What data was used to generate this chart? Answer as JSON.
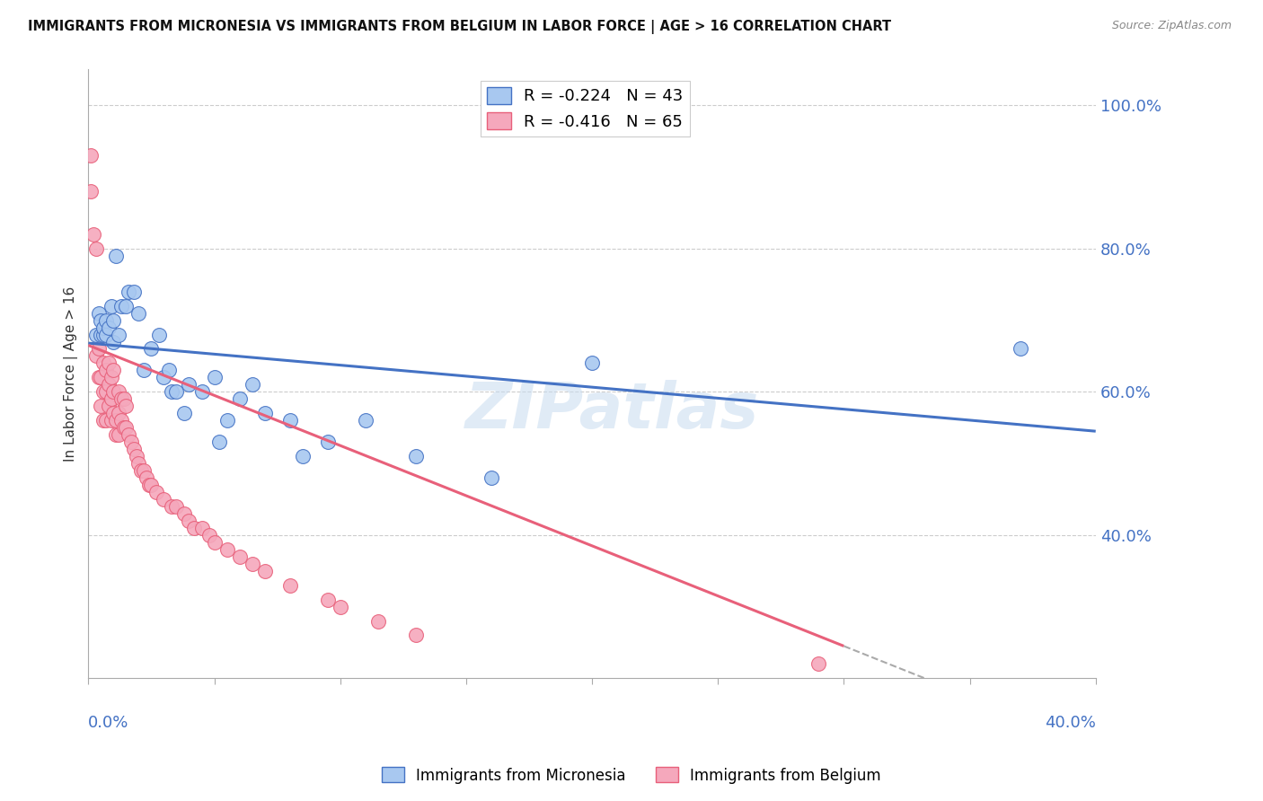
{
  "title": "IMMIGRANTS FROM MICRONESIA VS IMMIGRANTS FROM BELGIUM IN LABOR FORCE | AGE > 16 CORRELATION CHART",
  "source": "Source: ZipAtlas.com",
  "ylabel": "In Labor Force | Age > 16",
  "x_label_bottom_left": "0.0%",
  "x_label_bottom_right": "40.0%",
  "right_ytick_labels": [
    "40.0%",
    "60.0%",
    "80.0%",
    "100.0%"
  ],
  "right_ytick_vals": [
    0.4,
    0.6,
    0.8,
    1.0
  ],
  "xlim": [
    0.0,
    0.4
  ],
  "ylim": [
    0.2,
    1.05
  ],
  "legend_micronesia": "Immigrants from Micronesia",
  "legend_belgium": "Immigrants from Belgium",
  "R_micronesia": -0.224,
  "N_micronesia": 43,
  "R_belgium": -0.416,
  "N_belgium": 65,
  "color_micronesia": "#A8C8F0",
  "color_belgium": "#F5A8BC",
  "color_line_micronesia": "#4472C4",
  "color_line_belgium": "#E8607A",
  "color_axis_labels": "#4472C4",
  "watermark": "ZIPatlas",
  "micronesia_x": [
    0.003,
    0.004,
    0.005,
    0.005,
    0.006,
    0.006,
    0.007,
    0.007,
    0.008,
    0.009,
    0.01,
    0.01,
    0.011,
    0.012,
    0.013,
    0.015,
    0.016,
    0.018,
    0.02,
    0.022,
    0.025,
    0.028,
    0.03,
    0.032,
    0.033,
    0.035,
    0.038,
    0.04,
    0.045,
    0.05,
    0.052,
    0.055,
    0.06,
    0.065,
    0.07,
    0.08,
    0.085,
    0.095,
    0.11,
    0.13,
    0.16,
    0.2,
    0.37
  ],
  "micronesia_y": [
    0.68,
    0.71,
    0.68,
    0.7,
    0.68,
    0.69,
    0.68,
    0.7,
    0.69,
    0.72,
    0.7,
    0.67,
    0.79,
    0.68,
    0.72,
    0.72,
    0.74,
    0.74,
    0.71,
    0.63,
    0.66,
    0.68,
    0.62,
    0.63,
    0.6,
    0.6,
    0.57,
    0.61,
    0.6,
    0.62,
    0.53,
    0.56,
    0.59,
    0.61,
    0.57,
    0.56,
    0.51,
    0.53,
    0.56,
    0.51,
    0.48,
    0.64,
    0.66
  ],
  "belgium_x": [
    0.001,
    0.001,
    0.002,
    0.003,
    0.003,
    0.004,
    0.004,
    0.005,
    0.005,
    0.006,
    0.006,
    0.006,
    0.007,
    0.007,
    0.007,
    0.008,
    0.008,
    0.008,
    0.009,
    0.009,
    0.009,
    0.01,
    0.01,
    0.01,
    0.011,
    0.011,
    0.012,
    0.012,
    0.012,
    0.013,
    0.013,
    0.014,
    0.014,
    0.015,
    0.015,
    0.016,
    0.017,
    0.018,
    0.019,
    0.02,
    0.021,
    0.022,
    0.023,
    0.024,
    0.025,
    0.027,
    0.03,
    0.033,
    0.035,
    0.038,
    0.04,
    0.042,
    0.045,
    0.048,
    0.05,
    0.055,
    0.06,
    0.065,
    0.07,
    0.08,
    0.095,
    0.1,
    0.115,
    0.13,
    0.29
  ],
  "belgium_y": [
    0.88,
    0.93,
    0.82,
    0.8,
    0.65,
    0.66,
    0.62,
    0.62,
    0.58,
    0.6,
    0.56,
    0.64,
    0.6,
    0.56,
    0.63,
    0.58,
    0.61,
    0.64,
    0.56,
    0.59,
    0.62,
    0.57,
    0.6,
    0.63,
    0.54,
    0.56,
    0.54,
    0.57,
    0.6,
    0.56,
    0.59,
    0.55,
    0.59,
    0.55,
    0.58,
    0.54,
    0.53,
    0.52,
    0.51,
    0.5,
    0.49,
    0.49,
    0.48,
    0.47,
    0.47,
    0.46,
    0.45,
    0.44,
    0.44,
    0.43,
    0.42,
    0.41,
    0.41,
    0.4,
    0.39,
    0.38,
    0.37,
    0.36,
    0.35,
    0.33,
    0.31,
    0.3,
    0.28,
    0.26,
    0.22
  ],
  "trend_mic_x0": 0.0,
  "trend_mic_y0": 0.668,
  "trend_mic_x1": 0.4,
  "trend_mic_y1": 0.545,
  "trend_bel_x0": 0.0,
  "trend_bel_y0": 0.665,
  "trend_bel_x1": 0.3,
  "trend_bel_y1": 0.245,
  "trend_bel_solid_end": 0.3,
  "trend_bel_dash_end": 0.4
}
